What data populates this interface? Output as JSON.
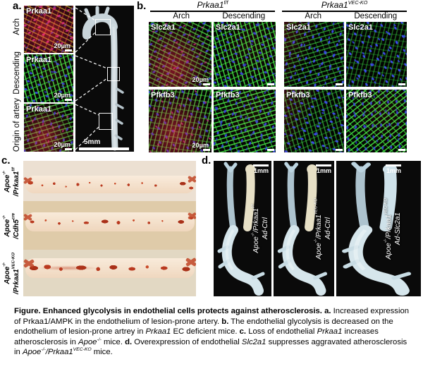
{
  "panel_a": {
    "label": "a.",
    "row_labels": [
      "Arch",
      "Descending",
      "Origin of artery"
    ],
    "thumbs": [
      {
        "marker": "Prkaa1",
        "scale": "20μm"
      },
      {
        "marker": "Prkaa1",
        "scale": "20μm"
      },
      {
        "marker": "Prkaa1",
        "scale": "20μm"
      }
    ],
    "aorta_scale": "5mm"
  },
  "panel_b": {
    "label": "b.",
    "groups": [
      {
        "title_runs": [
          {
            "t": "Prkaa1",
            "i": 1
          },
          {
            "t": "f/f",
            "i": 1,
            "sup": 1
          }
        ],
        "columns": [
          "Arch",
          "Descending"
        ]
      },
      {
        "title_runs": [
          {
            "t": "Prkaa1",
            "i": 1
          },
          {
            "t": "VEC-KO",
            "i": 1,
            "sup": 1
          }
        ],
        "columns": [
          "Arch",
          "Descending"
        ]
      }
    ],
    "cells": [
      {
        "marker": "Slc2a1",
        "scale": "20μm"
      },
      {
        "marker": "Slc2a1",
        "scale": ""
      },
      {
        "marker": "Slc2a1",
        "scale": ""
      },
      {
        "marker": "Slc2a1",
        "scale": ""
      },
      {
        "marker": "Pfkfb3",
        "scale": "20μm"
      },
      {
        "marker": "Pfkfb3",
        "scale": ""
      },
      {
        "marker": "Pfkfb3",
        "scale": ""
      },
      {
        "marker": "Pfkfb3",
        "scale": ""
      }
    ]
  },
  "panel_c": {
    "label": "c.",
    "rows": [
      {
        "genotype_runs": [
          {
            "t": "Apoe",
            "i": 1
          },
          {
            "t": "-/-",
            "i": 1,
            "sup": 1
          }
        ],
        "allele_runs": [
          {
            "t": "/Prkaa1",
            "i": 1
          },
          {
            "t": "f/f",
            "i": 1,
            "sup": 1
          }
        ]
      },
      {
        "genotype_runs": [
          {
            "t": "Apoe",
            "i": 1
          },
          {
            "t": "-/-",
            "i": 1,
            "sup": 1
          }
        ],
        "allele_runs": [
          {
            "t": "/Cdh5",
            "i": 1
          },
          {
            "t": "cre",
            "i": 1,
            "sup": 1
          }
        ]
      },
      {
        "genotype_runs": [
          {
            "t": "Apoe",
            "i": 1
          },
          {
            "t": "-/-",
            "i": 1,
            "sup": 1
          }
        ],
        "allele_runs": [
          {
            "t": "/Prkaa1",
            "i": 1
          },
          {
            "t": "VEC-KO",
            "i": 1,
            "sup": 1
          }
        ]
      }
    ]
  },
  "panel_d": {
    "label": "d.",
    "images": [
      {
        "scale": "1mm",
        "genotype_runs": [
          {
            "t": "Apoe",
            "i": 1
          },
          {
            "t": "-/-",
            "i": 1,
            "sup": 1
          },
          {
            "t": "/Prkaa1",
            "i": 1
          },
          {
            "t": "f/f",
            "i": 1,
            "sup": 1
          }
        ],
        "treatment": "Ad-Ctrl"
      },
      {
        "scale": "1mm",
        "genotype_runs": [
          {
            "t": "Apoe",
            "i": 1
          },
          {
            "t": "-/-",
            "i": 1,
            "sup": 1
          },
          {
            "t": "/Prkaa1",
            "i": 1
          },
          {
            "t": "VEC-KO",
            "i": 1,
            "sup": 1
          }
        ],
        "treatment": "Ad-Ctrl"
      },
      {
        "scale": "1mm",
        "genotype_runs": [
          {
            "t": "Apoe",
            "i": 1
          },
          {
            "t": "-/-",
            "i": 1,
            "sup": 1
          },
          {
            "t": "/Prkaa1",
            "i": 1
          },
          {
            "t": "VEC-KO",
            "i": 1,
            "sup": 1
          }
        ],
        "treatment": "Ad-Slc2a1"
      }
    ]
  },
  "caption": {
    "runs": [
      {
        "t": "Figure. Enhanced glycolysis in endothelial cells protects against atherosclerosis. ",
        "b": 1
      },
      {
        "t": "a.",
        "b": 1
      },
      {
        "t": " Increased expression of Prkaa1/AMPK in the endothelium of lesion-prone artery. "
      },
      {
        "t": "b.",
        "b": 1
      },
      {
        "t": " The endothelial glycolysis is decreased on the endothelium of lesion-prone artrey in "
      },
      {
        "t": "Prkaa1",
        "i": 1
      },
      {
        "t": " EC deficient mice. "
      },
      {
        "t": "c.",
        "b": 1
      },
      {
        "t": " Loss of endothelial "
      },
      {
        "t": "Prkaa1",
        "i": 1
      },
      {
        "t": " increases atherosclerosis in "
      },
      {
        "t": "Apoe",
        "i": 1
      },
      {
        "t": "-/-",
        "i": 1,
        "sup": 1
      },
      {
        "t": " mice. "
      },
      {
        "t": "d.",
        "b": 1
      },
      {
        "t": " Overexpression of endothelial "
      },
      {
        "t": "Slc2a1",
        "i": 1
      },
      {
        "t": " suppresses aggravated atherosclerosis in "
      },
      {
        "t": "Apoe",
        "i": 1
      },
      {
        "t": "-/-",
        "i": 1,
        "sup": 1
      },
      {
        "t": "/Prkaa1",
        "i": 1
      },
      {
        "t": "VEC-KO",
        "i": 1,
        "sup": 1
      },
      {
        "t": " mice."
      }
    ]
  },
  "colors": {
    "fluor_green": "#3cd63c",
    "fluor_blue": "#3448e0",
    "fluor_red": "#e8283c",
    "oil_red_o": "#bf3d1f",
    "aorta_tissue": "#d6e6ec",
    "photo_background": "#0a0a0a"
  }
}
